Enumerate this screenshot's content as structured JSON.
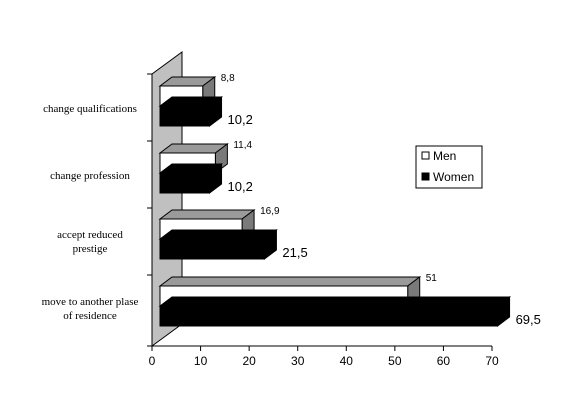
{
  "chart_data": {
    "type": "bar",
    "orientation": "horizontal",
    "three_d": true,
    "categories": [
      [
        "change qualifications"
      ],
      [
        "change profession"
      ],
      [
        "accept reduced",
        "prestige"
      ],
      [
        "move to another plase",
        "of residence"
      ]
    ],
    "series": [
      {
        "name": "Men",
        "values": [
          8.8,
          11.4,
          16.9,
          51
        ],
        "labels": [
          "8,8",
          "11,4",
          "16,9",
          "51"
        ],
        "color": "#ffffff"
      },
      {
        "name": "Women",
        "values": [
          10.2,
          10.2,
          21.5,
          69.5
        ],
        "labels": [
          "10,2",
          "10,2",
          "21,5",
          "69,5"
        ],
        "color": "#000000"
      }
    ],
    "xlim": [
      0,
      70
    ],
    "xticks": [
      "0",
      "10",
      "20",
      "30",
      "40",
      "50",
      "60",
      "70"
    ],
    "wall_color": "#c0c0c0",
    "grid": false,
    "legend_position": "right"
  }
}
